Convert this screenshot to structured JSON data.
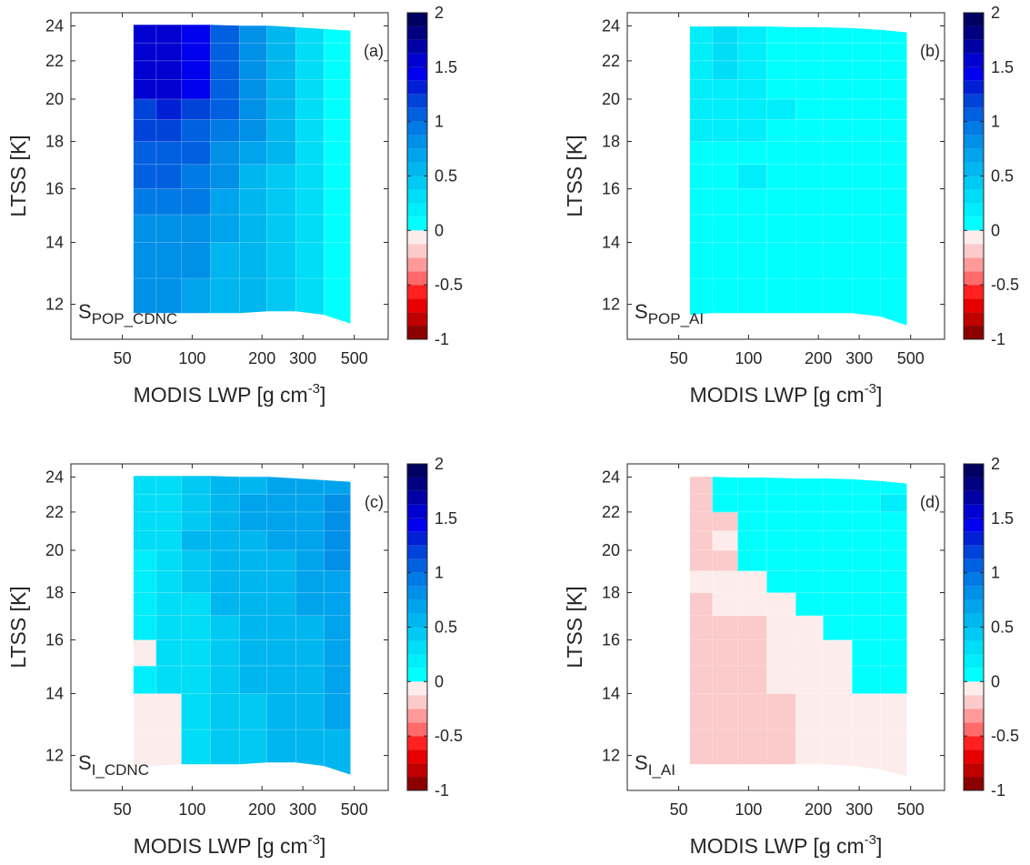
{
  "figure": {
    "xlabel_main": "MODIS LWP [g cm",
    "xlabel_sup": "-3",
    "xlabel_end": "]",
    "ylabel": "LTSS [K]",
    "x_tick_labels": [
      "50",
      "100",
      "200",
      "300",
      "500"
    ],
    "y_tick_labels": [
      "12",
      "14",
      "16",
      "18",
      "20",
      "22",
      "24"
    ],
    "colorbar_tick_labels": [
      "2",
      "1.5",
      "1",
      "0.5",
      "0",
      "-0.5",
      "-1"
    ]
  },
  "chart_data": [
    {
      "type": "heatmap",
      "panel": "(a)",
      "label_main": "S",
      "label_sub": "POP_CDNC",
      "xscale": "log",
      "xlim": [
        30,
        700
      ],
      "ylim": [
        11,
        24.8
      ],
      "clim": [
        -1,
        2
      ],
      "x_edges": [
        56,
        70,
        90,
        120,
        160,
        210,
        280,
        370,
        480
      ],
      "y_edges": [
        11.7,
        12.8,
        14,
        15,
        16,
        17,
        18,
        19,
        20,
        21,
        22,
        23,
        24
      ],
      "top_edge": [
        24.05,
        24.05,
        24.05,
        24.05,
        24.0,
        24.0,
        23.9,
        23.8,
        23.7
      ],
      "bottom_edge": [
        11.75,
        11.75,
        11.75,
        11.75,
        11.75,
        11.8,
        11.8,
        11.7,
        11.45
      ],
      "values": [
        [
          0.8,
          0.75,
          0.7,
          0.6,
          0.5,
          0.4,
          0.25,
          0.1
        ],
        [
          0.8,
          0.75,
          0.85,
          0.6,
          0.5,
          0.4,
          0.25,
          0.1
        ],
        [
          0.85,
          0.85,
          0.8,
          0.65,
          0.55,
          0.4,
          0.25,
          0.1
        ],
        [
          0.95,
          0.95,
          0.9,
          0.7,
          0.6,
          0.4,
          0.25,
          0.1
        ],
        [
          1.05,
          1.05,
          0.95,
          0.8,
          0.6,
          0.45,
          0.3,
          0.1
        ],
        [
          1.1,
          1.1,
          1.0,
          0.85,
          0.7,
          0.5,
          0.3,
          0.1
        ],
        [
          1.15,
          1.2,
          1.05,
          0.95,
          0.75,
          0.5,
          0.3,
          0.1
        ],
        [
          1.2,
          1.35,
          1.15,
          1.0,
          0.8,
          0.55,
          0.3,
          0.1
        ],
        [
          1.5,
          1.5,
          1.4,
          1.05,
          0.85,
          0.6,
          0.35,
          0.1
        ],
        [
          1.55,
          1.55,
          1.45,
          1.1,
          0.85,
          0.6,
          0.35,
          0.1
        ],
        [
          1.6,
          1.55,
          1.45,
          1.1,
          0.85,
          0.55,
          0.35,
          0.1
        ],
        [
          1.6,
          1.55,
          1.45,
          1.1,
          0.85,
          0.55,
          0.3,
          0.1
        ]
      ]
    },
    {
      "type": "heatmap",
      "panel": "(b)",
      "label_main": "S",
      "label_sub": "POP_AI",
      "xscale": "log",
      "xlim": [
        30,
        700
      ],
      "ylim": [
        11,
        24.8
      ],
      "clim": [
        -1,
        2
      ],
      "x_edges": [
        56,
        70,
        90,
        120,
        160,
        210,
        280,
        370,
        480
      ],
      "y_edges": [
        11.7,
        12.8,
        14,
        15,
        16,
        17,
        18,
        19,
        20,
        21,
        22,
        23,
        24
      ],
      "top_edge": [
        23.95,
        23.95,
        23.95,
        23.95,
        23.9,
        23.9,
        23.85,
        23.75,
        23.6
      ],
      "bottom_edge": [
        11.7,
        11.75,
        11.75,
        11.75,
        11.75,
        11.75,
        11.75,
        11.65,
        11.4
      ],
      "values": [
        [
          0.05,
          0.05,
          0.05,
          0.05,
          0.05,
          0.05,
          0.05,
          0.05
        ],
        [
          0.05,
          0.05,
          0.05,
          0.05,
          0.05,
          0.05,
          0.05,
          0.05
        ],
        [
          0.05,
          0.05,
          0.05,
          0.05,
          0.05,
          0.05,
          0.05,
          0.05
        ],
        [
          0.05,
          0.05,
          0.05,
          0.05,
          0.05,
          0.05,
          0.05,
          0.05
        ],
        [
          0.1,
          0.1,
          0.15,
          0.1,
          0.05,
          0.05,
          0.05,
          0.05
        ],
        [
          0.1,
          0.1,
          0.1,
          0.1,
          0.05,
          0.05,
          0.05,
          0.05
        ],
        [
          0.15,
          0.15,
          0.15,
          0.1,
          0.1,
          0.05,
          0.05,
          0.05
        ],
        [
          0.15,
          0.15,
          0.15,
          0.15,
          0.1,
          0.05,
          0.05,
          0.05
        ],
        [
          0.15,
          0.15,
          0.15,
          0.1,
          0.1,
          0.05,
          0.05,
          0.05
        ],
        [
          0.15,
          0.25,
          0.15,
          0.1,
          0.1,
          0.1,
          0.05,
          0.05
        ],
        [
          0.15,
          0.3,
          0.15,
          0.1,
          0.1,
          0.1,
          0.05,
          0.05
        ],
        [
          0.15,
          0.25,
          0.15,
          0.1,
          0.1,
          0.1,
          0.05,
          0.05
        ]
      ]
    },
    {
      "type": "heatmap",
      "panel": "(c)",
      "label_main": "S",
      "label_sub": "I_CDNC",
      "xscale": "log",
      "xlim": [
        30,
        700
      ],
      "ylim": [
        11,
        24.8
      ],
      "clim": [
        -1,
        2
      ],
      "x_edges": [
        56,
        70,
        90,
        120,
        160,
        210,
        280,
        370,
        480
      ],
      "y_edges": [
        11.7,
        12.8,
        14,
        15,
        16,
        17,
        18,
        19,
        20,
        21,
        22,
        23,
        24
      ],
      "top_edge": [
        24.05,
        24.05,
        24.05,
        24.05,
        24.0,
        24.0,
        23.9,
        23.8,
        23.7
      ],
      "bottom_edge": [
        11.7,
        11.7,
        11.75,
        11.75,
        11.75,
        11.8,
        11.8,
        11.7,
        11.45
      ],
      "values": [
        [
          -0.05,
          -0.05,
          0.35,
          0.4,
          0.45,
          0.5,
          0.55,
          0.6
        ],
        [
          -0.05,
          -0.05,
          0.35,
          0.4,
          0.45,
          0.55,
          0.6,
          0.65
        ],
        [
          0.15,
          0.25,
          0.35,
          0.45,
          0.5,
          0.55,
          0.6,
          0.65
        ],
        [
          -0.05,
          0.25,
          0.35,
          0.45,
          0.5,
          0.55,
          0.6,
          0.65
        ],
        [
          0.2,
          0.25,
          0.35,
          0.45,
          0.6,
          0.55,
          0.6,
          0.65
        ],
        [
          0.2,
          0.3,
          0.35,
          0.5,
          0.55,
          0.6,
          0.65,
          0.7
        ],
        [
          0.2,
          0.35,
          0.4,
          0.5,
          0.55,
          0.6,
          0.65,
          0.7
        ],
        [
          0.2,
          0.35,
          0.45,
          0.5,
          0.6,
          0.6,
          0.7,
          0.75
        ],
        [
          0.25,
          0.35,
          0.5,
          0.55,
          0.6,
          0.65,
          0.7,
          0.75
        ],
        [
          0.25,
          0.35,
          0.45,
          0.55,
          0.65,
          0.65,
          0.7,
          0.75
        ],
        [
          0.25,
          0.35,
          0.45,
          0.55,
          0.65,
          0.7,
          0.7,
          0.75
        ],
        [
          0.25,
          0.35,
          0.45,
          0.55,
          0.6,
          0.65,
          0.7,
          0.7
        ]
      ]
    },
    {
      "type": "heatmap",
      "panel": "(d)",
      "label_main": "S",
      "label_sub": "I_AI",
      "xscale": "log",
      "xlim": [
        30,
        700
      ],
      "ylim": [
        11,
        24.8
      ],
      "clim": [
        -1,
        2
      ],
      "x_edges": [
        56,
        70,
        90,
        120,
        160,
        210,
        280,
        370,
        480
      ],
      "y_edges": [
        11.7,
        12.8,
        14,
        15,
        16,
        17,
        18,
        19,
        20,
        21,
        22,
        23,
        24
      ],
      "top_edge": [
        24.0,
        24.0,
        23.95,
        23.95,
        23.9,
        23.9,
        23.85,
        23.75,
        23.6
      ],
      "bottom_edge": [
        11.75,
        11.75,
        11.75,
        11.75,
        11.75,
        11.75,
        11.7,
        11.6,
        11.4
      ],
      "values": [
        [
          -0.2,
          -0.2,
          -0.25,
          -0.25,
          -0.1,
          -0.1,
          -0.05,
          -0.05
        ],
        [
          -0.2,
          -0.2,
          -0.25,
          -0.25,
          -0.1,
          -0.1,
          -0.05,
          -0.05
        ],
        [
          -0.2,
          -0.2,
          -0.2,
          -0.1,
          -0.1,
          -0.1,
          0.05,
          0.05
        ],
        [
          -0.2,
          -0.2,
          -0.2,
          -0.1,
          -0.1,
          -0.1,
          0.05,
          0.05
        ],
        [
          -0.2,
          -0.2,
          -0.2,
          -0.1,
          -0.1,
          0.05,
          0.05,
          0.05
        ],
        [
          -0.2,
          -0.1,
          -0.1,
          -0.1,
          0.05,
          0.05,
          0.05,
          0.05
        ],
        [
          -0.1,
          -0.1,
          -0.1,
          0.05,
          0.05,
          0.05,
          0.05,
          0.05
        ],
        [
          -0.2,
          -0.2,
          0.05,
          0.05,
          0.05,
          0.1,
          0.05,
          0.05
        ],
        [
          -0.2,
          -0.05,
          0.05,
          0.05,
          0.05,
          0.05,
          0.05,
          0.05
        ],
        [
          -0.2,
          -0.2,
          0.05,
          0.05,
          0.05,
          0.05,
          0.05,
          0.1
        ],
        [
          -0.2,
          0.05,
          0.05,
          0.05,
          0.05,
          0.05,
          0.05,
          0.2
        ],
        [
          -0.2,
          0.05,
          0.05,
          0.05,
          0.05,
          0.05,
          0.05,
          0.1
        ]
      ]
    }
  ],
  "colormap": {
    "negative": [
      "#8b0000",
      "#c10000",
      "#e80000",
      "#ff2020",
      "#ff6a6a",
      "#ff9a9a",
      "#fbcaca",
      "#fdecec"
    ],
    "positive": [
      "#00ffff",
      "#00eefb",
      "#00ddf6",
      "#00caf3",
      "#00b6ef",
      "#00a4ec",
      "#0090e8",
      "#007ae5",
      "#0060e0",
      "#0043d8",
      "#0020d5",
      "#0000ee",
      "#0000d0",
      "#0000a5",
      "#000080",
      "#000060"
    ]
  }
}
